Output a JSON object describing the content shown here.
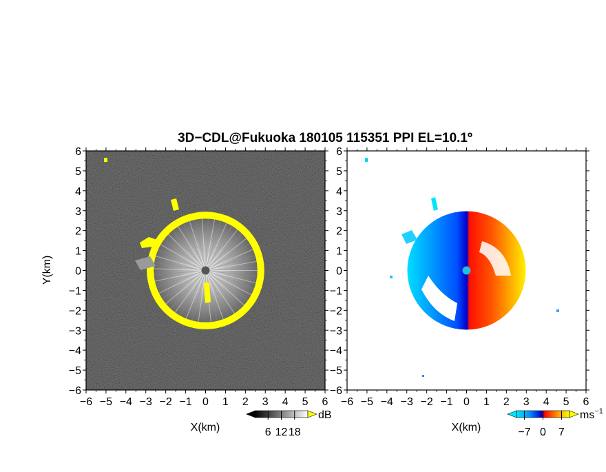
{
  "chart_data": [
    {
      "type": "heatmap",
      "variable": "reflectivity",
      "title": "3D−CDL@Fukuoka 180105 115351 PPI EL=10.1º",
      "xlabel": "X(km)",
      "ylabel": "Y(km)",
      "xlim": [
        -6,
        6
      ],
      "ylim": [
        -6,
        6
      ],
      "xticks": [
        "−6",
        "−5",
        "−4",
        "−3",
        "−2",
        "−1",
        "0",
        "1",
        "2",
        "3",
        "4",
        "5",
        "6"
      ],
      "yticks": [
        "6",
        "5",
        "4",
        "3",
        "2",
        "1",
        "0",
        "−1",
        "−2",
        "−3",
        "−4",
        "−5",
        "−6"
      ],
      "background_color": "#242424",
      "ring_color": "#ffff00",
      "ring": {
        "center": [
          0,
          0
        ],
        "inner_radius_km": 2.6,
        "outer_radius_km": 2.95
      },
      "features": [
        {
          "label": "radar site",
          "x": 0,
          "y": 0
        },
        {
          "label": "echo",
          "x": -5.1,
          "y": 5.65
        }
      ],
      "colorbar": {
        "unit": "dB",
        "ticks": [
          "6",
          "12",
          "18"
        ],
        "range": [
          0,
          24
        ]
      }
    },
    {
      "type": "heatmap",
      "variable": "doppler velocity",
      "xlabel": "X(km)",
      "ylabel": "",
      "xlim": [
        -6,
        6
      ],
      "ylim": [
        -6,
        6
      ],
      "xticks": [
        "−6",
        "−5",
        "−4",
        "−3",
        "−2",
        "−1",
        "0",
        "1",
        "2",
        "3",
        "4",
        "5",
        "6"
      ],
      "yticks": [
        "6",
        "5",
        "4",
        "3",
        "2",
        "1",
        "0",
        "−1",
        "−2",
        "−3",
        "−4",
        "−5",
        "−6"
      ],
      "pattern": "dipole: approaching (negative) on west side, receding (positive) on east side",
      "colorbar": {
        "unit": "ms",
        "unit_exponent": "−1",
        "ticks": [
          "−7",
          "0",
          "7"
        ],
        "range": [
          -10,
          10
        ],
        "colors": [
          "#00e5ff",
          "#0064ff",
          "#0000c8",
          "#ff0000",
          "#ff9900",
          "#ffff00"
        ]
      }
    }
  ]
}
